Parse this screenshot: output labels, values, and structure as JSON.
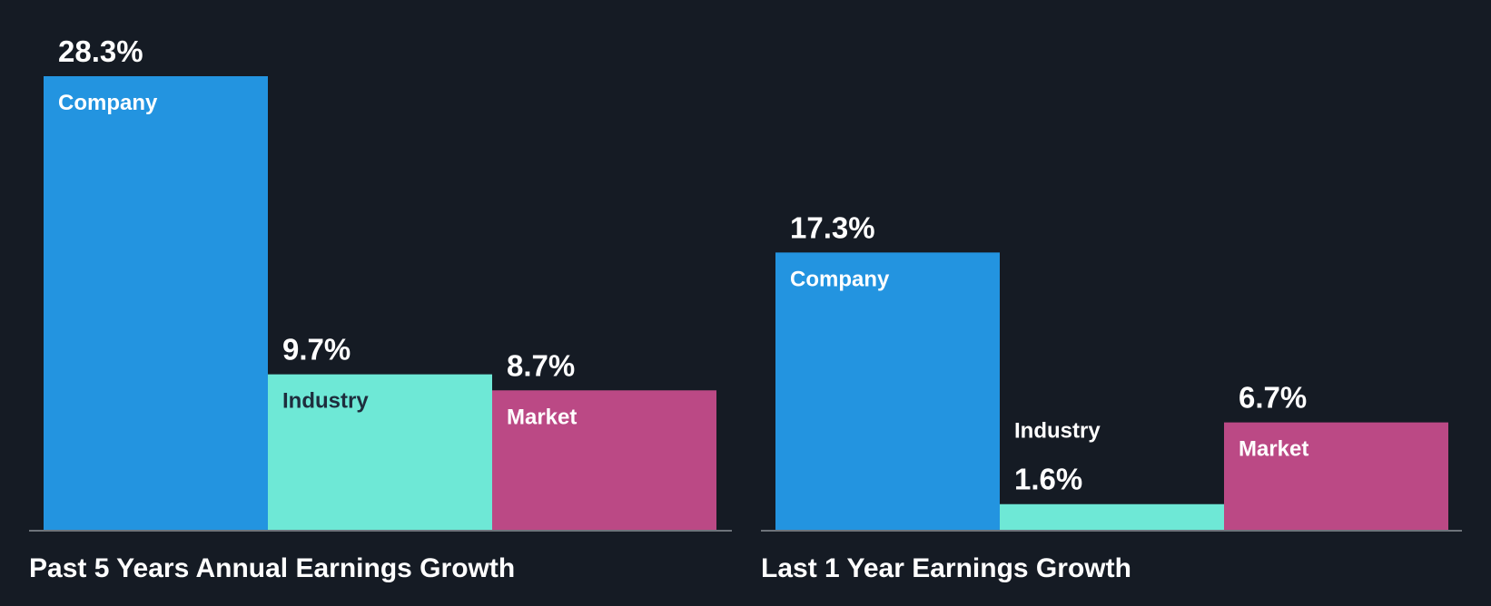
{
  "colors": {
    "background": "#151b24",
    "Company": "#2394e0",
    "Industry": "#6ee8d6",
    "Market": "#bb4985",
    "axis": "#6d737a",
    "text": "#ffffff",
    "dark_text": "#1e2d3d"
  },
  "chart_data": [
    {
      "type": "bar",
      "title": "Past 5 Years Annual Earnings Growth",
      "categories": [
        "Company",
        "Industry",
        "Market"
      ],
      "values": [
        28.3,
        9.7,
        8.7
      ],
      "value_labels": [
        "28.3%",
        "9.7%",
        "8.7%"
      ],
      "unit": "%",
      "ylim": [
        0,
        28.3
      ],
      "xlabel": "",
      "ylabel": "",
      "grid": false
    },
    {
      "type": "bar",
      "title": "Last 1 Year Earnings Growth",
      "categories": [
        "Company",
        "Industry",
        "Market"
      ],
      "values": [
        17.3,
        1.6,
        6.7
      ],
      "value_labels": [
        "17.3%",
        "1.6%",
        "6.7%"
      ],
      "unit": "%",
      "ylim": [
        0,
        28.3
      ],
      "xlabel": "",
      "ylabel": "",
      "grid": false
    }
  ]
}
